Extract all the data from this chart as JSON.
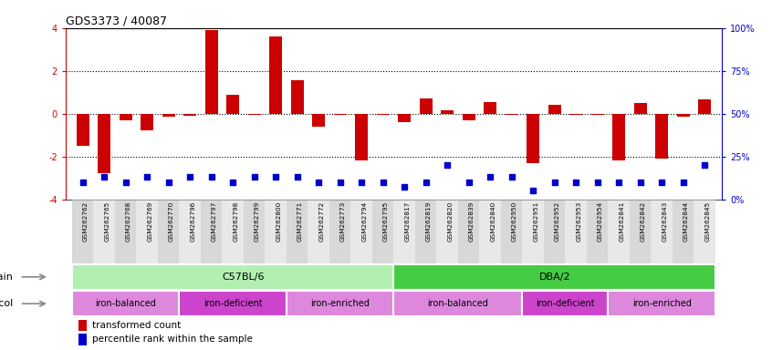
{
  "title": "GDS3373 / 40087",
  "samples": [
    "GSM262762",
    "GSM262765",
    "GSM262768",
    "GSM262769",
    "GSM262770",
    "GSM262796",
    "GSM262797",
    "GSM262798",
    "GSM262799",
    "GSM262800",
    "GSM262771",
    "GSM262772",
    "GSM262773",
    "GSM262794",
    "GSM262795",
    "GSM262817",
    "GSM262819",
    "GSM262820",
    "GSM262839",
    "GSM262840",
    "GSM262950",
    "GSM262951",
    "GSM262952",
    "GSM262953",
    "GSM262954",
    "GSM262841",
    "GSM262842",
    "GSM262843",
    "GSM262844",
    "GSM262845"
  ],
  "red_values": [
    -1.5,
    -2.8,
    -0.3,
    -0.8,
    -0.15,
    -0.1,
    3.9,
    0.9,
    -0.05,
    3.6,
    1.55,
    -0.6,
    -0.05,
    -2.2,
    -0.05,
    -0.4,
    0.7,
    0.15,
    -0.3,
    0.55,
    -0.05,
    -2.3,
    0.4,
    -0.05,
    -0.05,
    -2.2,
    0.5,
    -2.1,
    -0.15,
    0.65
  ],
  "blue_values_pct": [
    10,
    13,
    10,
    13,
    10,
    13,
    13,
    10,
    13,
    13,
    13,
    10,
    10,
    10,
    10,
    7,
    10,
    20,
    10,
    13,
    13,
    5,
    10,
    10,
    10,
    10,
    10,
    10,
    10,
    20
  ],
  "strain_groups": [
    {
      "label": "C57BL/6",
      "start": 0,
      "end": 15,
      "color": "#b2f0b2"
    },
    {
      "label": "DBA/2",
      "start": 15,
      "end": 29,
      "color": "#44cc44"
    }
  ],
  "protocol_groups": [
    {
      "label": "iron-balanced",
      "start": 0,
      "end": 4,
      "color": "#dd88dd"
    },
    {
      "label": "iron-deficient",
      "start": 5,
      "end": 9,
      "color": "#cc44cc"
    },
    {
      "label": "iron-enriched",
      "start": 10,
      "end": 14,
      "color": "#dd88dd"
    },
    {
      "label": "iron-balanced",
      "start": 15,
      "end": 20,
      "color": "#dd88dd"
    },
    {
      "label": "iron-deficient",
      "start": 21,
      "end": 24,
      "color": "#cc44cc"
    },
    {
      "label": "iron-enriched",
      "start": 25,
      "end": 29,
      "color": "#dd88dd"
    }
  ],
  "ylim": [
    -4,
    4
  ],
  "y2lim": [
    0,
    100
  ],
  "yticks_left": [
    -4,
    -2,
    0,
    2,
    4
  ],
  "ytick_labels_left": [
    "-4",
    "-2",
    "0",
    "2",
    "4"
  ],
  "y2ticks": [
    0,
    25,
    50,
    75,
    100
  ],
  "y2ticklabels": [
    "0%",
    "25%",
    "50%",
    "75%",
    "100%"
  ],
  "dotted_lines": [
    -2,
    0,
    2
  ],
  "bar_color": "#cc0000",
  "dot_color": "#0000cc",
  "bg_color": "#ffffff",
  "title_color": "#000000",
  "title_fontsize": 9,
  "tick_fontsize": 7,
  "label_fontsize": 8
}
